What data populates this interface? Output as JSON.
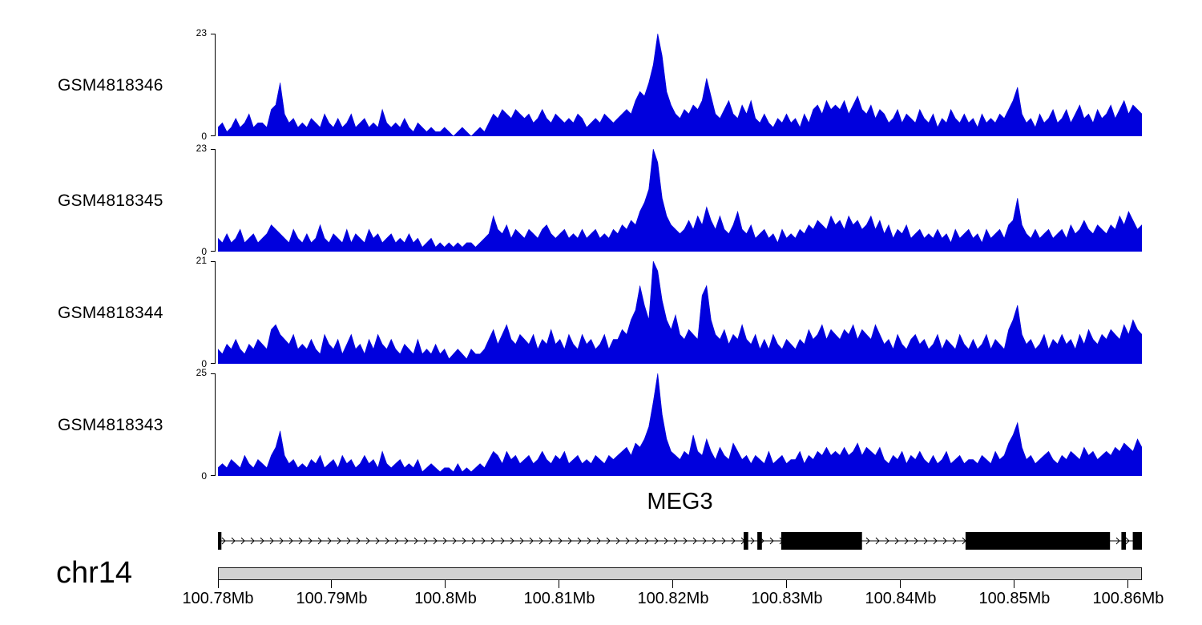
{
  "chart_data": {
    "type": "area",
    "title": "MEG3",
    "x_unit": "Mb",
    "x_range": [
      100.78,
      100.8612
    ],
    "axis_ticks": [
      {
        "pos": 100.78,
        "label": "100.78Mb"
      },
      {
        "pos": 100.79,
        "label": "100.79Mb"
      },
      {
        "pos": 100.8,
        "label": "100.8Mb"
      },
      {
        "pos": 100.81,
        "label": "100.81Mb"
      },
      {
        "pos": 100.82,
        "label": "100.82Mb"
      },
      {
        "pos": 100.83,
        "label": "100.83Mb"
      },
      {
        "pos": 100.84,
        "label": "100.84Mb"
      },
      {
        "pos": 100.85,
        "label": "100.85Mb"
      },
      {
        "pos": 100.86,
        "label": "100.86Mb"
      }
    ],
    "tracks": [
      {
        "label": "GSM4818346",
        "ymin": 0,
        "ymax": 23,
        "color": "#0000dd",
        "values": [
          2,
          3,
          1,
          2,
          4,
          2,
          3,
          5,
          2,
          3,
          3,
          2,
          6,
          7,
          12,
          5,
          3,
          4,
          2,
          3,
          2,
          4,
          3,
          2,
          5,
          3,
          2,
          4,
          2,
          3,
          5,
          2,
          3,
          4,
          2,
          3,
          2,
          6,
          3,
          2,
          3,
          2,
          4,
          2,
          1,
          3,
          2,
          1,
          2,
          1,
          1,
          2,
          1,
          0,
          1,
          2,
          1,
          0,
          1,
          2,
          1,
          3,
          5,
          4,
          6,
          5,
          4,
          6,
          5,
          4,
          5,
          3,
          4,
          6,
          4,
          3,
          5,
          4,
          3,
          4,
          3,
          5,
          4,
          2,
          3,
          4,
          3,
          5,
          4,
          3,
          4,
          5,
          6,
          5,
          8,
          10,
          9,
          12,
          16,
          23,
          18,
          10,
          7,
          5,
          4,
          6,
          5,
          7,
          6,
          8,
          13,
          9,
          5,
          4,
          6,
          8,
          5,
          4,
          7,
          5,
          8,
          4,
          3,
          5,
          3,
          2,
          4,
          3,
          5,
          3,
          4,
          2,
          5,
          3,
          6,
          7,
          5,
          8,
          6,
          7,
          6,
          8,
          5,
          7,
          9,
          6,
          5,
          7,
          4,
          6,
          5,
          3,
          4,
          6,
          3,
          5,
          4,
          3,
          6,
          4,
          3,
          5,
          2,
          4,
          3,
          6,
          4,
          3,
          5,
          3,
          4,
          2,
          5,
          3,
          4,
          3,
          5,
          4,
          6,
          8,
          11,
          5,
          3,
          4,
          2,
          5,
          3,
          4,
          6,
          3,
          4,
          6,
          3,
          5,
          7,
          4,
          5,
          3,
          6,
          4,
          5,
          7,
          4,
          6,
          8,
          5,
          7,
          6,
          5
        ]
      },
      {
        "label": "GSM4818345",
        "ymin": 0,
        "ymax": 23,
        "color": "#0000dd",
        "values": [
          3,
          2,
          4,
          2,
          3,
          5,
          2,
          3,
          4,
          2,
          3,
          4,
          6,
          5,
          4,
          3,
          2,
          5,
          3,
          2,
          4,
          2,
          3,
          6,
          3,
          2,
          4,
          3,
          2,
          5,
          2,
          4,
          3,
          2,
          5,
          3,
          4,
          2,
          3,
          4,
          2,
          3,
          2,
          4,
          2,
          3,
          1,
          2,
          3,
          1,
          2,
          1,
          2,
          1,
          2,
          1,
          2,
          2,
          1,
          2,
          3,
          4,
          8,
          5,
          4,
          6,
          3,
          5,
          4,
          3,
          5,
          4,
          3,
          5,
          6,
          4,
          3,
          4,
          5,
          3,
          4,
          3,
          5,
          3,
          4,
          5,
          3,
          4,
          3,
          5,
          4,
          6,
          5,
          7,
          6,
          9,
          11,
          14,
          23,
          20,
          12,
          8,
          6,
          5,
          4,
          5,
          7,
          5,
          8,
          6,
          10,
          7,
          5,
          8,
          5,
          4,
          6,
          9,
          5,
          4,
          6,
          3,
          4,
          5,
          3,
          4,
          2,
          5,
          3,
          4,
          3,
          5,
          4,
          6,
          5,
          7,
          6,
          5,
          8,
          6,
          7,
          5,
          8,
          6,
          7,
          5,
          6,
          8,
          5,
          7,
          4,
          6,
          3,
          5,
          4,
          6,
          3,
          4,
          5,
          3,
          4,
          3,
          5,
          3,
          4,
          2,
          5,
          3,
          4,
          5,
          3,
          4,
          2,
          5,
          3,
          4,
          5,
          3,
          6,
          7,
          12,
          6,
          4,
          3,
          5,
          3,
          4,
          5,
          3,
          4,
          5,
          3,
          6,
          4,
          5,
          7,
          5,
          4,
          6,
          5,
          4,
          6,
          5,
          8,
          6,
          9,
          7,
          5,
          6
        ]
      },
      {
        "label": "GSM4818344",
        "ymin": 0,
        "ymax": 21,
        "color": "#0000dd",
        "values": [
          3,
          2,
          4,
          3,
          5,
          3,
          2,
          4,
          3,
          5,
          4,
          3,
          7,
          8,
          6,
          5,
          4,
          6,
          3,
          4,
          3,
          5,
          3,
          2,
          6,
          4,
          3,
          5,
          2,
          4,
          6,
          3,
          4,
          2,
          5,
          3,
          6,
          4,
          3,
          5,
          3,
          2,
          4,
          3,
          2,
          5,
          2,
          3,
          2,
          4,
          2,
          3,
          1,
          2,
          3,
          2,
          1,
          3,
          2,
          2,
          3,
          5,
          7,
          4,
          6,
          8,
          5,
          4,
          6,
          5,
          4,
          6,
          3,
          5,
          4,
          7,
          4,
          5,
          3,
          6,
          4,
          3,
          6,
          4,
          5,
          3,
          4,
          6,
          3,
          5,
          5,
          7,
          6,
          9,
          11,
          16,
          12,
          9,
          21,
          19,
          13,
          9,
          7,
          10,
          6,
          5,
          7,
          6,
          5,
          14,
          16,
          9,
          6,
          5,
          7,
          4,
          6,
          5,
          8,
          5,
          4,
          6,
          3,
          5,
          3,
          6,
          4,
          3,
          5,
          4,
          3,
          5,
          4,
          7,
          5,
          6,
          8,
          5,
          7,
          6,
          5,
          7,
          6,
          8,
          5,
          7,
          6,
          5,
          8,
          6,
          4,
          5,
          3,
          6,
          4,
          3,
          5,
          6,
          4,
          5,
          3,
          4,
          6,
          3,
          5,
          4,
          3,
          6,
          4,
          3,
          5,
          3,
          4,
          6,
          3,
          5,
          4,
          3,
          7,
          9,
          12,
          6,
          4,
          5,
          3,
          4,
          6,
          3,
          5,
          4,
          6,
          4,
          5,
          3,
          6,
          4,
          7,
          5,
          4,
          6,
          5,
          7,
          6,
          5,
          8,
          6,
          9,
          7,
          6
        ]
      },
      {
        "label": "GSM4818343",
        "ymin": 0,
        "ymax": 25,
        "color": "#0000dd",
        "values": [
          2,
          3,
          2,
          4,
          3,
          2,
          5,
          3,
          2,
          4,
          3,
          2,
          5,
          7,
          11,
          5,
          3,
          4,
          2,
          3,
          2,
          4,
          3,
          5,
          2,
          3,
          4,
          2,
          5,
          3,
          4,
          2,
          3,
          5,
          3,
          4,
          2,
          6,
          3,
          2,
          3,
          4,
          2,
          3,
          2,
          4,
          1,
          2,
          3,
          2,
          1,
          2,
          2,
          1,
          3,
          1,
          2,
          1,
          2,
          3,
          2,
          4,
          6,
          5,
          3,
          6,
          4,
          5,
          3,
          4,
          5,
          3,
          4,
          6,
          4,
          3,
          5,
          4,
          6,
          3,
          4,
          5,
          3,
          4,
          3,
          5,
          4,
          3,
          5,
          4,
          5,
          6,
          7,
          5,
          8,
          7,
          9,
          12,
          18,
          25,
          15,
          9,
          6,
          5,
          4,
          6,
          5,
          10,
          6,
          5,
          9,
          6,
          4,
          7,
          5,
          4,
          8,
          6,
          4,
          5,
          3,
          5,
          4,
          3,
          6,
          3,
          4,
          5,
          3,
          4,
          4,
          6,
          3,
          5,
          4,
          6,
          5,
          7,
          5,
          6,
          5,
          7,
          5,
          6,
          8,
          5,
          7,
          6,
          5,
          7,
          4,
          3,
          5,
          4,
          6,
          3,
          5,
          4,
          6,
          4,
          3,
          5,
          3,
          4,
          6,
          3,
          4,
          5,
          3,
          4,
          4,
          3,
          5,
          4,
          3,
          6,
          4,
          5,
          8,
          10,
          13,
          7,
          4,
          5,
          3,
          4,
          5,
          6,
          4,
          3,
          5,
          4,
          6,
          5,
          4,
          7,
          5,
          6,
          4,
          5,
          6,
          5,
          7,
          6,
          8,
          7,
          6,
          9,
          7
        ]
      }
    ],
    "gene_model": {
      "name": "MEG3",
      "strand": "right",
      "start": 100.78,
      "end": 100.8612,
      "exons": [
        [
          100.78,
          100.7803
        ],
        [
          100.8262,
          100.8266
        ],
        [
          100.8274,
          100.8278
        ],
        [
          100.8295,
          100.8366
        ],
        [
          100.8457,
          100.8584
        ],
        [
          100.8594,
          100.8598
        ],
        [
          100.8604,
          100.8612
        ]
      ]
    },
    "ideogram": {
      "label": "chr14",
      "fill": "#d2d2d2",
      "border": "#1a1a1a"
    }
  }
}
